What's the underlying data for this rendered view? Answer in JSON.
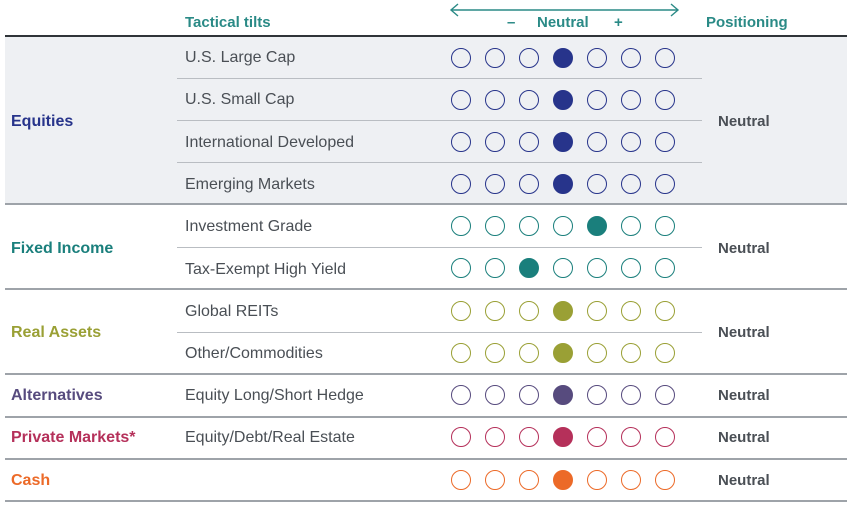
{
  "header": {
    "tactical_tilts": "Tactical tilts",
    "minus": "–",
    "neutral": "Neutral",
    "plus": "+",
    "positioning": "Positioning"
  },
  "colors": {
    "equities": "#27348b",
    "fixed_income": "#1a7f7c",
    "real_assets": "#9aa035",
    "alternatives": "#574b7e",
    "private_markets": "#b5305a",
    "cash": "#ec6a28",
    "header": "#2a8a86"
  },
  "groups": {
    "equities": {
      "label": "Equities",
      "positioning": "Neutral",
      "rows": [
        {
          "label": "U.S. Large Cap",
          "filled": 4
        },
        {
          "label": "U.S. Small Cap",
          "filled": 4
        },
        {
          "label": "International Developed",
          "filled": 4
        },
        {
          "label": "Emerging Markets",
          "filled": 4
        }
      ]
    },
    "fixed_income": {
      "label": "Fixed Income",
      "positioning": "Neutral",
      "rows": [
        {
          "label": "Investment Grade",
          "filled": 5
        },
        {
          "label": "Tax-Exempt High Yield",
          "filled": 3
        }
      ]
    },
    "real_assets": {
      "label": "Real Assets",
      "positioning": "Neutral",
      "rows": [
        {
          "label": "Global REITs",
          "filled": 4
        },
        {
          "label": "Other/Commodities",
          "filled": 4
        }
      ]
    },
    "alternatives": {
      "label": "Alternatives",
      "positioning": "Neutral",
      "rows": [
        {
          "label": "Equity Long/Short Hedge",
          "filled": 4
        }
      ]
    },
    "private_markets": {
      "label": "Private Markets*",
      "positioning": "Neutral",
      "rows": [
        {
          "label": "Equity/Debt/Real Estate",
          "filled": 4
        }
      ]
    },
    "cash": {
      "label": "Cash",
      "positioning": "Neutral",
      "rows": [
        {
          "label": "",
          "filled": 4
        }
      ]
    }
  }
}
